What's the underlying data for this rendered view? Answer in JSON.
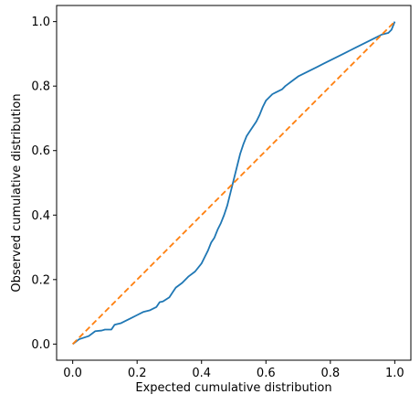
{
  "chart_data": {
    "type": "line",
    "title": "",
    "xlabel": "Expected cumulative distribution",
    "ylabel": "Observed cumulative distribution",
    "xlim": [
      -0.05,
      1.05
    ],
    "ylim": [
      -0.05,
      1.05
    ],
    "grid": false,
    "x_ticks": [
      0.0,
      0.2,
      0.4,
      0.6,
      0.8,
      1.0
    ],
    "y_ticks": [
      0.0,
      0.2,
      0.4,
      0.6,
      0.8,
      1.0
    ],
    "x_tick_labels": [
      "0.0",
      "0.2",
      "0.4",
      "0.6",
      "0.8",
      "1.0"
    ],
    "y_tick_labels": [
      "0.0",
      "0.2",
      "0.4",
      "0.6",
      "0.8",
      "1.0"
    ],
    "series": [
      {
        "color": "#1f77b4",
        "style": "solid",
        "x": [
          0.0,
          0.02,
          0.05,
          0.07,
          0.09,
          0.1,
          0.12,
          0.13,
          0.15,
          0.17,
          0.18,
          0.2,
          0.22,
          0.24,
          0.26,
          0.27,
          0.28,
          0.3,
          0.31,
          0.32,
          0.34,
          0.36,
          0.38,
          0.4,
          0.41,
          0.42,
          0.43,
          0.44,
          0.45,
          0.46,
          0.47,
          0.48,
          0.49,
          0.5,
          0.51,
          0.52,
          0.53,
          0.54,
          0.55,
          0.56,
          0.57,
          0.58,
          0.59,
          0.6,
          0.61,
          0.62,
          0.63,
          0.64,
          0.65,
          0.66,
          0.68,
          0.7,
          0.72,
          0.74,
          0.76,
          0.78,
          0.8,
          0.82,
          0.84,
          0.86,
          0.88,
          0.9,
          0.92,
          0.94,
          0.96,
          0.98,
          0.99,
          1.0
        ],
        "y": [
          0.0,
          0.015,
          0.025,
          0.04,
          0.042,
          0.045,
          0.045,
          0.06,
          0.065,
          0.075,
          0.08,
          0.09,
          0.1,
          0.105,
          0.115,
          0.13,
          0.132,
          0.145,
          0.16,
          0.175,
          0.19,
          0.21,
          0.225,
          0.25,
          0.27,
          0.29,
          0.315,
          0.33,
          0.355,
          0.375,
          0.4,
          0.43,
          0.47,
          0.51,
          0.55,
          0.59,
          0.62,
          0.645,
          0.66,
          0.675,
          0.69,
          0.71,
          0.735,
          0.755,
          0.765,
          0.775,
          0.78,
          0.785,
          0.79,
          0.8,
          0.815,
          0.83,
          0.84,
          0.85,
          0.86,
          0.87,
          0.88,
          0.89,
          0.9,
          0.91,
          0.92,
          0.93,
          0.94,
          0.95,
          0.96,
          0.965,
          0.975,
          1.0
        ]
      },
      {
        "color": "#ff7f0e",
        "style": "dashed",
        "x": [
          0.0,
          1.0
        ],
        "y": [
          0.0,
          1.0
        ]
      }
    ]
  }
}
